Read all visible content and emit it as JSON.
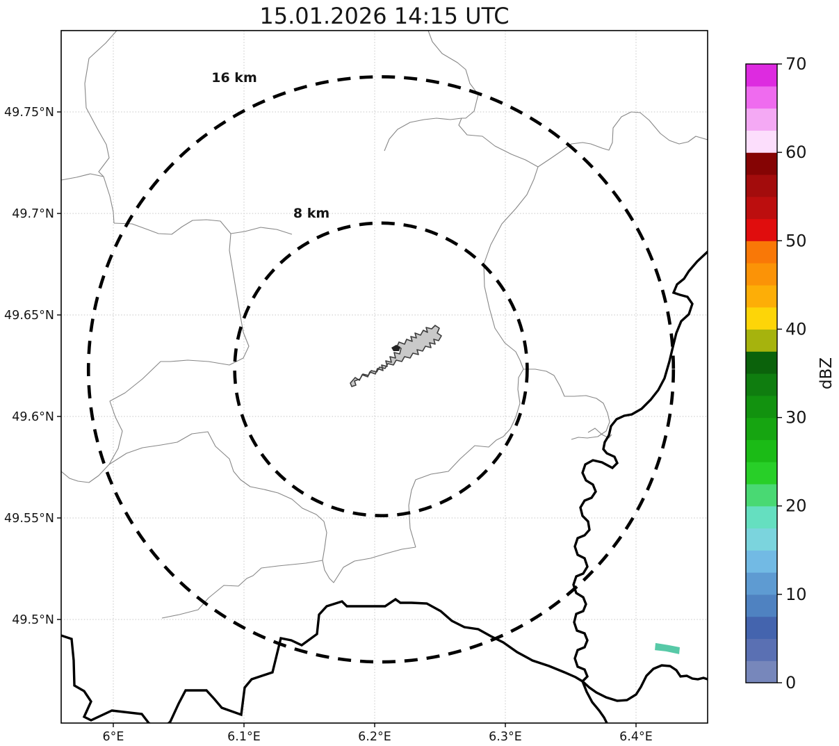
{
  "title": "15.01.2026 14:15 UTC",
  "axes": {
    "x": {
      "ticks": [
        {
          "lon": 6.0,
          "label": "6°E"
        },
        {
          "lon": 6.1,
          "label": "6.1°E"
        },
        {
          "lon": 6.2,
          "label": "6.2°E"
        },
        {
          "lon": 6.3,
          "label": "6.3°E"
        },
        {
          "lon": 6.4,
          "label": "6.4°E"
        }
      ]
    },
    "y": {
      "ticks": [
        {
          "lat": 49.75,
          "label": "49.75°N"
        },
        {
          "lat": 49.7,
          "label": "49.7°N"
        },
        {
          "lat": 49.65,
          "label": "49.65°N"
        },
        {
          "lat": 49.6,
          "label": "49.6°N"
        },
        {
          "lat": 49.55,
          "label": "49.55°N"
        },
        {
          "lat": 49.5,
          "label": "49.5°N"
        }
      ]
    }
  },
  "radar_center": {
    "lon": 6.2048,
    "lat": 49.6232
  },
  "range_rings": [
    {
      "label": "16 km",
      "radius_km": 16
    },
    {
      "label": "8 km",
      "radius_km": 8
    }
  ],
  "colorbar": {
    "label": "dBZ",
    "vmin": 0,
    "vmax": 70,
    "tick_values": [
      0,
      10,
      20,
      30,
      40,
      50,
      60,
      70
    ],
    "segment_colors": [
      "#7787bb",
      "#5a70b3",
      "#4464ae",
      "#4f82c1",
      "#5e9bd2",
      "#72bae4",
      "#7bd4dd",
      "#65dfc0",
      "#49d973",
      "#28cf28",
      "#1bbb16",
      "#16a511",
      "#12920f",
      "#0f7d0f",
      "#0b620b",
      "#a6b30d",
      "#fdd508",
      "#fdae07",
      "#fb9307",
      "#f97807",
      "#e00d0d",
      "#bc0e0e",
      "#a30c0c",
      "#850404",
      "#fcdefc",
      "#f4a9f4",
      "#ef6bef",
      "#dd2be0"
    ]
  },
  "echo": {
    "color": "#57c9a7",
    "polygon_lonlat": [
      [
        6.4149,
        49.4884
      ],
      [
        6.4245,
        49.4874
      ],
      [
        6.4335,
        49.4863
      ],
      [
        6.433,
        49.4829
      ],
      [
        6.4229,
        49.4843
      ],
      [
        6.4144,
        49.4849
      ]
    ]
  },
  "chart_data": {
    "type": "heatmap",
    "title": "15.01.2026 14:15 UTC",
    "xlabel_ticks": [
      "6°E",
      "6.1°E",
      "6.2°E",
      "6.3°E",
      "6.4°E"
    ],
    "ylabel_ticks": [
      "49.75°N",
      "49.7°N",
      "49.65°N",
      "49.6°N",
      "49.55°N",
      "49.5°N"
    ],
    "colorbar_label": "dBZ",
    "colorbar_range": [
      0,
      70
    ],
    "colorbar_ticks": [
      0,
      10,
      20,
      30,
      40,
      50,
      60,
      70
    ],
    "range_rings_km": [
      8,
      16
    ],
    "radar_center_lonlat": [
      6.2048,
      49.6232
    ],
    "echoes": [
      {
        "approx_lon": 6.424,
        "approx_lat": 49.486,
        "approx_dbz": 18.75
      }
    ]
  }
}
